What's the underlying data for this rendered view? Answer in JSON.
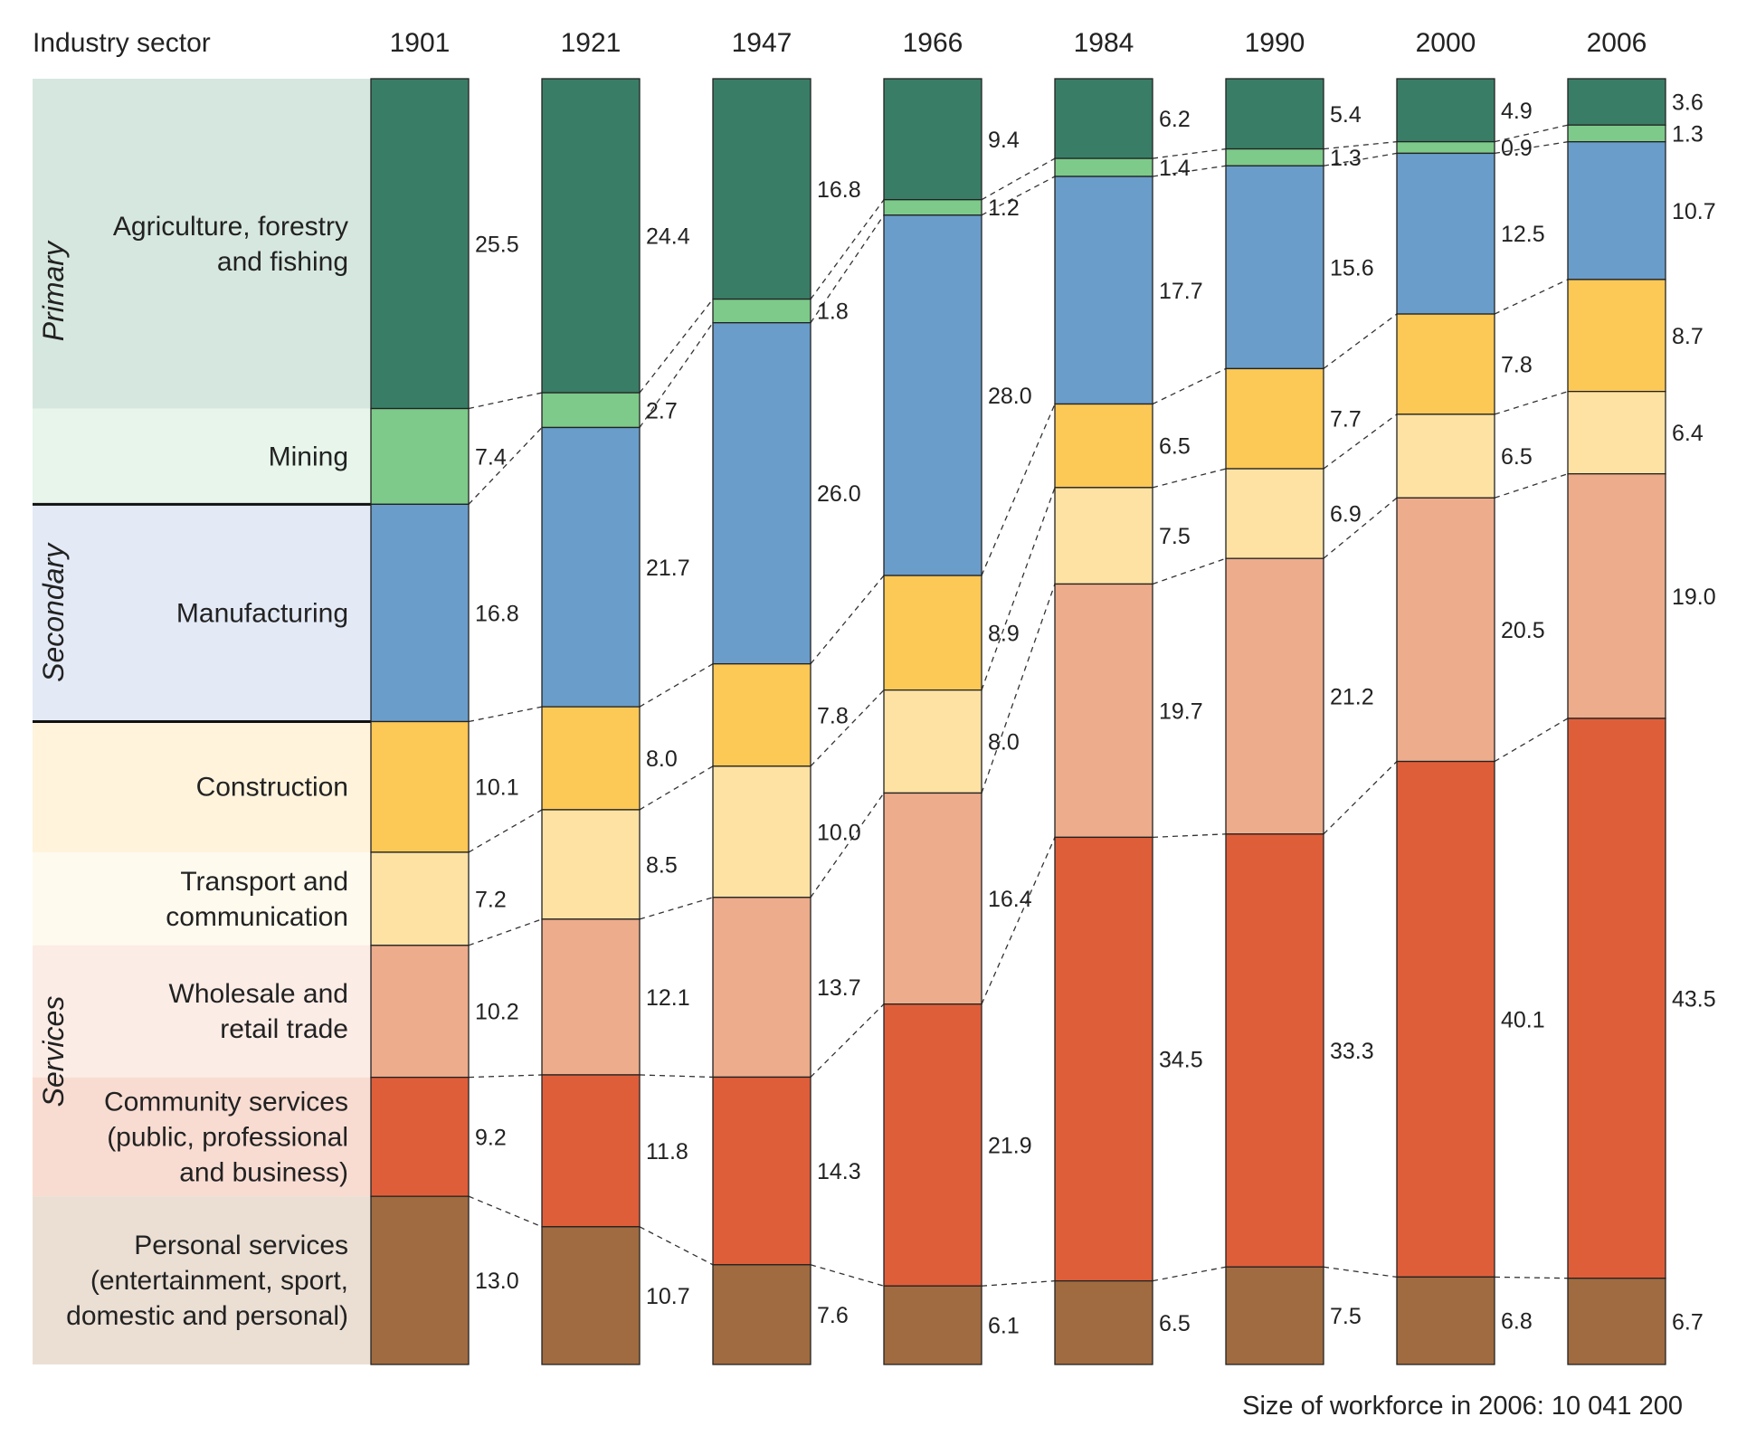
{
  "chart_data": {
    "type": "stacked-bar",
    "header_label": "Industry sector",
    "years": [
      "1901",
      "1921",
      "1947",
      "1966",
      "1984",
      "1990",
      "2000",
      "2006"
    ],
    "groups": [
      {
        "name": "Primary",
        "sectors": [
          0,
          1
        ]
      },
      {
        "name": "Secondary",
        "sectors": [
          2
        ]
      },
      {
        "name": "Services",
        "sectors": [
          3,
          4,
          5,
          6,
          7
        ]
      }
    ],
    "series": [
      {
        "name": "Agriculture, forestry and fishing",
        "lines": [
          "Agriculture, forestry",
          "and fishing"
        ],
        "color": "#3A7D67",
        "bg": "#D6E7DF",
        "values": [
          25.5,
          24.4,
          16.8,
          9.4,
          6.2,
          5.4,
          4.9,
          3.6
        ],
        "labels": [
          "25.5",
          "24.4",
          "16.8",
          "9.4",
          "6.2",
          "5.4",
          "4.9",
          "3.6"
        ]
      },
      {
        "name": "Mining",
        "lines": [
          "Mining"
        ],
        "color": "#7DCA8A",
        "bg": "#E7F5EA",
        "values": [
          7.4,
          2.7,
          1.8,
          1.2,
          1.4,
          1.3,
          0.9,
          1.3
        ],
        "labels": [
          "7.4",
          "2.7",
          "1.8",
          "1.2",
          "1.4",
          "1.3",
          "0.9",
          "1.3"
        ]
      },
      {
        "name": "Manufacturing",
        "lines": [
          "Manufacturing"
        ],
        "color": "#6A9DCA",
        "bg": "#E3E9F5",
        "values": [
          16.8,
          21.7,
          26.0,
          28.0,
          17.7,
          15.6,
          12.5,
          10.7
        ],
        "labels": [
          "16.8",
          "21.7",
          "26.0",
          "28.0",
          "17.7",
          "15.6",
          "12.5",
          "10.7"
        ]
      },
      {
        "name": "Construction",
        "lines": [
          "Construction"
        ],
        "color": "#FCC856",
        "bg": "#FFF3DC",
        "values": [
          10.1,
          8.0,
          7.8,
          8.9,
          6.5,
          7.7,
          7.8,
          8.7
        ],
        "labels": [
          "10.1",
          "8.0",
          "7.8",
          "8.9",
          "6.5",
          "7.7",
          "7.8",
          "8.7"
        ]
      },
      {
        "name": "Transport and communication",
        "lines": [
          "Transport and",
          "communication"
        ],
        "color": "#FDE2A4",
        "bg": "#FEFAEE",
        "values": [
          7.2,
          8.5,
          10.0,
          8.0,
          7.5,
          6.9,
          6.5,
          6.4
        ],
        "labels": [
          "7.2",
          "8.5",
          "10.0",
          "8.0",
          "7.5",
          "6.9",
          "6.5",
          "6.4"
        ]
      },
      {
        "name": "Wholesale and retail trade",
        "lines": [
          "Wholesale and",
          "retail trade"
        ],
        "color": "#EDAC8C",
        "bg": "#FCECE6",
        "values": [
          10.2,
          12.1,
          13.7,
          16.4,
          19.7,
          21.2,
          20.5,
          19.0
        ],
        "labels": [
          "10.2",
          "12.1",
          "13.7",
          "16.4",
          "19.7",
          "21.2",
          "20.5",
          "19.0"
        ]
      },
      {
        "name": "Community services (public, professional and business)",
        "lines": [
          "Community services",
          "(public, professional",
          "and business)"
        ],
        "color": "#DF5E3A",
        "bg": "#F8DCD2",
        "values": [
          9.2,
          11.8,
          14.3,
          21.9,
          34.5,
          33.3,
          40.1,
          43.5
        ],
        "labels": [
          "9.2",
          "11.8",
          "14.3",
          "21.9",
          "34.5",
          "33.3",
          "40.1",
          "43.5"
        ]
      },
      {
        "name": "Personal services (entertainment, sport, domestic and personal)",
        "lines": [
          "Personal services",
          "(entertainment, sport,",
          "domestic and personal)"
        ],
        "color": "#A06B40",
        "bg": "#EBDFD4",
        "values": [
          13.0,
          10.7,
          7.6,
          6.1,
          6.5,
          7.5,
          6.8,
          6.7
        ],
        "labels": [
          "13.0",
          "10.7",
          "7.6",
          "6.1",
          "6.5",
          "7.5",
          "6.8",
          "6.7"
        ]
      }
    ],
    "footnote": "Size of workforce in 2006: 10 041 200"
  }
}
